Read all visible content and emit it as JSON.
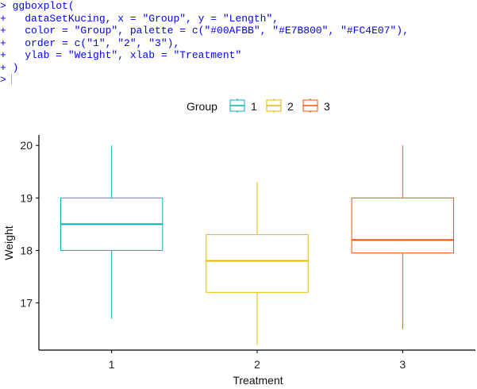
{
  "console": {
    "lines": [
      {
        "prompt": ">",
        "code": " ggboxplot("
      },
      {
        "prompt": "+",
        "code": "   dataSetKucing, x = \"Group\", y = \"Length\","
      },
      {
        "prompt": "+",
        "code": "   color = \"Group\", palette = c(\"#00AFBB\", \"#E7B800\", \"#FC4E07\"),"
      },
      {
        "prompt": "+",
        "code": "   order = c(\"1\", \"2\", \"3\"),"
      },
      {
        "prompt": "+",
        "code": "   ylab = \"Weight\", xlab = \"Treatment\""
      },
      {
        "prompt": "+",
        "code": " )"
      },
      {
        "prompt": ">",
        "code": ""
      }
    ]
  },
  "chart_data": {
    "type": "boxplot",
    "xlabel": "Treatment",
    "ylabel": "Weight",
    "ylim": [
      16.1,
      20.2
    ],
    "yticks": [
      17,
      18,
      19,
      20
    ],
    "legend": {
      "title": "Group",
      "position": "top"
    },
    "categories": [
      "1",
      "2",
      "3"
    ],
    "series": [
      {
        "name": "1",
        "color": "#00AFBB",
        "min": 16.7,
        "q1": 18.0,
        "median": 18.5,
        "q3": 19.0,
        "max": 20.0
      },
      {
        "name": "2",
        "color": "#E7B800",
        "min": 16.2,
        "q1": 17.2,
        "median": 17.8,
        "q3": 18.3,
        "max": 19.3
      },
      {
        "name": "3",
        "color": "#FC4E07",
        "min": 16.5,
        "q1": 17.95,
        "median": 18.2,
        "q3": 19.0,
        "max": 20.0
      }
    ]
  }
}
